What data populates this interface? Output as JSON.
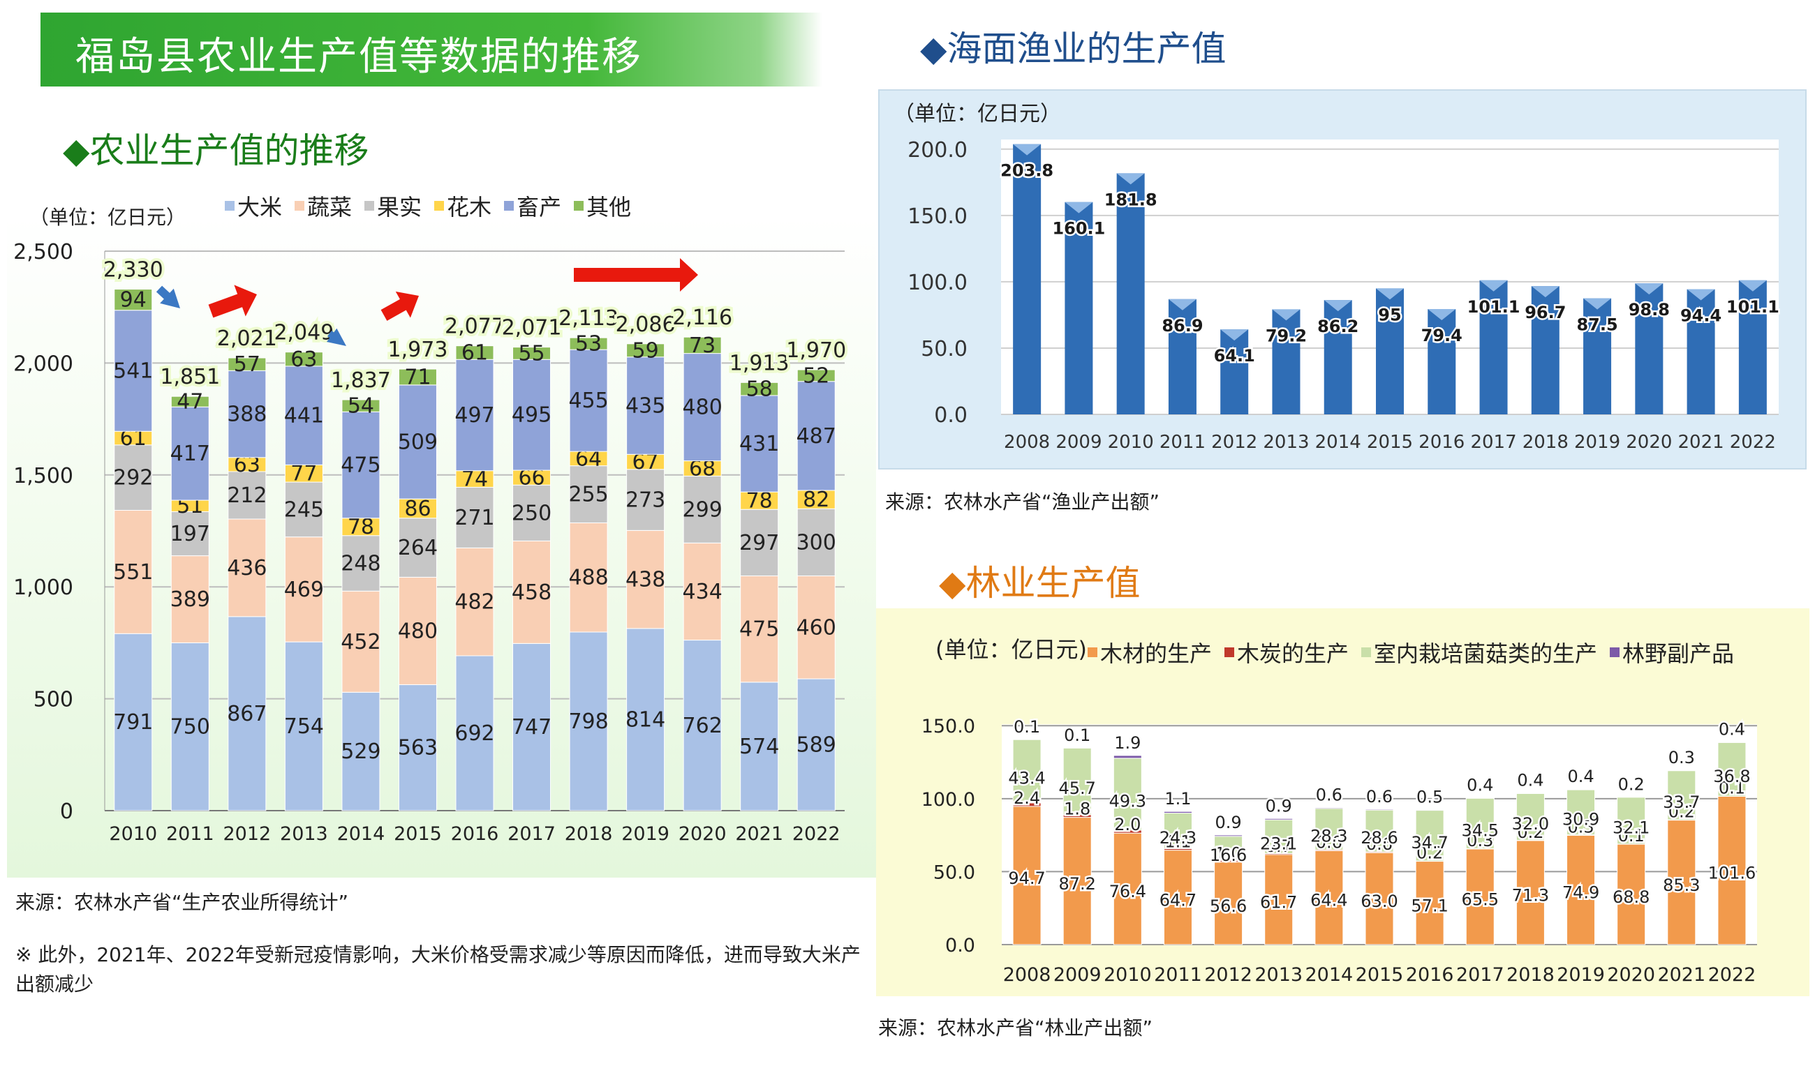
{
  "header": {
    "title": "福岛县农业生产值等数据的推移"
  },
  "agri": {
    "section_title": "◆农业生产值的推移",
    "unit": "（单位：亿日元）",
    "source": "来源：农林水产省“生产农业所得统计”",
    "note": "※ 此外，2021年、2022年受新冠疫情影响，大米价格受需求减少等原因而降低，进而导致大米产出额减少"
  },
  "fish": {
    "section_title": "◆海面渔业的生产值",
    "unit": "（单位：亿日元）",
    "source": "来源：农林水产省“渔业产出额”"
  },
  "forest": {
    "section_title": "◆林业生产值",
    "unit": "(单位：亿日元)",
    "source": "来源：农林水产省“林业产出额”"
  },
  "colors": {
    "rice": "#a9c1e6",
    "veg": "#f9cfb4",
    "fruit": "#c6c6c6",
    "flower": "#ffd54a",
    "livestock": "#8fa3d8",
    "other": "#8dbd5a",
    "fish_bar": "#2f6db5",
    "timber": "#f29a4c",
    "charcoal": "#c0392b",
    "mushroom": "#c9dfa9",
    "wildprod": "#7c5aa8",
    "arrow": "#e8190d",
    "arrow_blue": "#3b78c3",
    "total_label_bg": "#eefccf"
  },
  "chart_data": [
    {
      "type": "bar",
      "stacked": true,
      "title": "◆农业生产值的推移",
      "unit": "（单位：亿日元）",
      "categories": [
        "2010",
        "2011",
        "2012",
        "2013",
        "2014",
        "2015",
        "2016",
        "2017",
        "2018",
        "2019",
        "2020",
        "2021",
        "2022"
      ],
      "legend_labels": [
        "大米",
        "蔬菜",
        "果实",
        "花木",
        "畜产",
        "其他"
      ],
      "ylim": [
        0,
        2500
      ],
      "yticks": [
        "0",
        "500",
        "1,000",
        "1,500",
        "2,000",
        "2,500"
      ],
      "series": [
        {
          "name": "大米",
          "values": [
            791,
            750,
            867,
            754,
            529,
            563,
            692,
            747,
            798,
            814,
            762,
            574,
            589
          ]
        },
        {
          "name": "蔬菜",
          "values": [
            551,
            389,
            436,
            469,
            452,
            480,
            482,
            458,
            488,
            438,
            434,
            475,
            460
          ]
        },
        {
          "name": "果实",
          "values": [
            292,
            197,
            212,
            245,
            248,
            264,
            271,
            250,
            255,
            273,
            299,
            297,
            300
          ]
        },
        {
          "name": "花木",
          "values": [
            61,
            51,
            63,
            77,
            78,
            86,
            74,
            66,
            64,
            67,
            68,
            78,
            82
          ]
        },
        {
          "name": "畜产",
          "values": [
            541,
            417,
            388,
            441,
            475,
            509,
            497,
            495,
            455,
            435,
            480,
            431,
            487
          ]
        },
        {
          "name": "其他",
          "values": [
            94,
            47,
            57,
            63,
            54,
            71,
            61,
            55,
            53,
            59,
            73,
            58,
            52
          ]
        }
      ],
      "totals": [
        "2,330",
        "1,851",
        "2,021",
        "2,049",
        "1,837",
        "1,973",
        "2,077",
        "2,071",
        "2,113",
        "2,086",
        "2,116",
        "1,913",
        "1,970"
      ],
      "grid": "horizontal"
    },
    {
      "type": "bar",
      "title": "◆海面渔业的生产值",
      "unit": "（单位：亿日元）",
      "categories": [
        "2008",
        "2009",
        "2010",
        "2011",
        "2012",
        "2013",
        "2014",
        "2015",
        "2016",
        "2017",
        "2018",
        "2019",
        "2020",
        "2021",
        "2022"
      ],
      "values": [
        203.8,
        160.1,
        181.8,
        86.9,
        64.1,
        79.2,
        86.2,
        95,
        79.4,
        101.1,
        96.7,
        87.5,
        98.8,
        94.4,
        101.1
      ],
      "labels": [
        "203.8",
        "160.1",
        "181.8",
        "86.9",
        "64.1",
        "79.2",
        "86.2",
        "95",
        "79.4",
        "101.1",
        "96.7",
        "87.5",
        "98.8",
        "94.4",
        "101.1"
      ],
      "ylim": [
        0,
        200
      ],
      "yticks": [
        "0.0",
        "50.0",
        "100.0",
        "150.0",
        "200.0"
      ],
      "grid": "horizontal"
    },
    {
      "type": "bar",
      "stacked": true,
      "title": "◆林业生产值",
      "unit": "(单位：亿日元)",
      "categories": [
        "2008",
        "2009",
        "2010",
        "2011",
        "2012",
        "2013",
        "2014",
        "2015",
        "2016",
        "2017",
        "2018",
        "2019",
        "2020",
        "2021",
        "2022"
      ],
      "ylim": [
        0,
        150
      ],
      "yticks": [
        "0.0",
        "50.0",
        "100.0",
        "150.0"
      ],
      "series": [
        {
          "name": "木材的生产",
          "values": [
            94.7,
            87.2,
            76.4,
            64.7,
            56.6,
            61.7,
            64.4,
            63.0,
            57.1,
            65.5,
            71.3,
            74.9,
            68.8,
            85.3,
            101.6
          ],
          "labels": [
            "94.7",
            "87.2",
            "76.4",
            "64.7",
            "56.6",
            "61.7",
            "64.4",
            "63.0",
            "57.1",
            "65.5",
            "71.3",
            "74.9",
            "68.8",
            "85.3",
            "101.6"
          ]
        },
        {
          "name": "木炭的生产",
          "values": [
            2.4,
            1.8,
            2.0,
            1.1,
            1.0,
            0.7,
            0.6,
            0.6,
            0.2,
            0.3,
            0.2,
            0.3,
            0.1,
            0.2,
            0.1
          ],
          "labels": [
            "2.4",
            "1.8",
            "2.0",
            "1.1",
            "1.0",
            "0.7",
            "0.6",
            "0.6",
            "0.2",
            "0.3",
            "0.2",
            "0.3",
            "0.1",
            "0.2",
            "0.1"
          ]
        },
        {
          "name": "室内栽培菌菇类的生产",
          "values": [
            43.4,
            45.7,
            49.3,
            24.3,
            16.6,
            23.1,
            28.3,
            28.6,
            34.7,
            34.5,
            32.0,
            30.9,
            32.1,
            33.7,
            36.8
          ],
          "labels": [
            "43.4",
            "45.7",
            "49.3",
            "24.3",
            "16.6",
            "23.1",
            "28.3",
            "28.6",
            "34.7",
            "34.5",
            "32.0",
            "30.9",
            "32.1",
            "33.7",
            "36.8"
          ]
        },
        {
          "name": "林野副产品",
          "values": [
            0.1,
            0.1,
            1.9,
            1.1,
            0.9,
            0.9,
            0.6,
            0.6,
            0.5,
            0.4,
            0.4,
            0.4,
            0.2,
            0.3,
            0.4
          ],
          "labels": [
            "0.1",
            "0.1",
            "1.9",
            "1.1",
            "0.9",
            "0.9",
            "0.6",
            "0.6",
            "0.5",
            "0.4",
            "0.4",
            "0.4",
            "0.2",
            "0.3",
            "0.4"
          ]
        }
      ],
      "grid": "horizontal"
    }
  ]
}
